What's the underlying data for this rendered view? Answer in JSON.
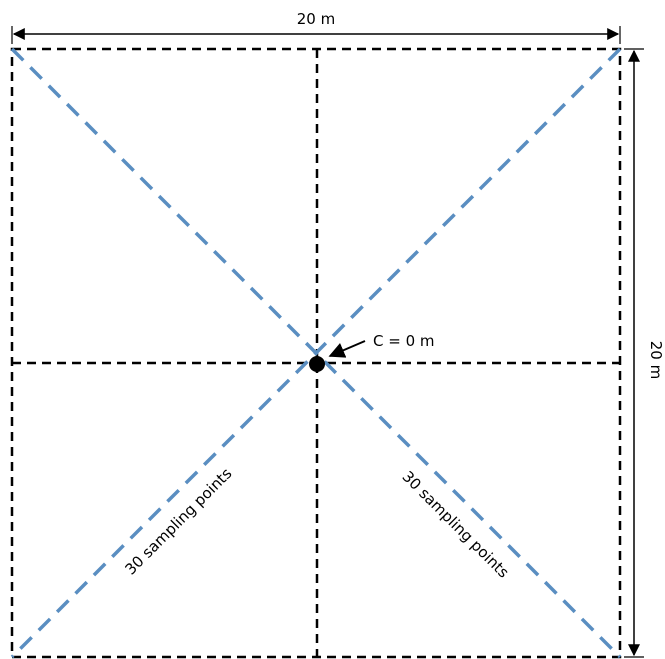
{
  "labels": {
    "width": "20 m",
    "height": "20 m",
    "center": "C = 0 m",
    "left_diagonal": "30 sampling points",
    "right_diagonal": "30 sampling points"
  },
  "colors": {
    "grid_line": "#000000",
    "diagonal_line": "#5a8ec1",
    "center_point": "#000000"
  },
  "icons": {
    "center_arrow": "arrow-icon",
    "dimension_arrows": "double-arrow-icon"
  }
}
